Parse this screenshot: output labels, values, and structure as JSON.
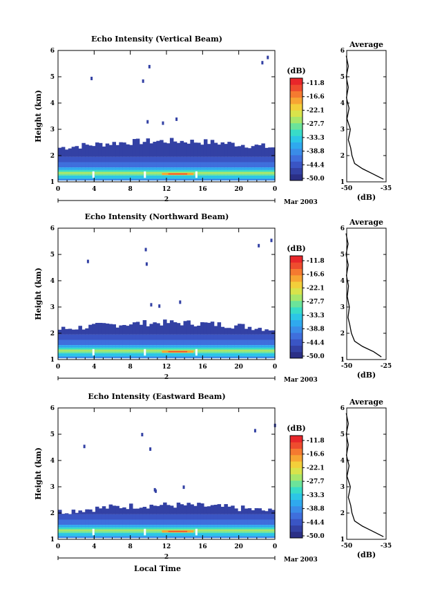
{
  "colorbar": {
    "unit": "(dB)",
    "labels": [
      "-11.8",
      "-16.6",
      "-22.1",
      "-27.7",
      "-33.3",
      "-38.8",
      "-44.4",
      "-50.0"
    ],
    "colors": [
      "#2b2f86",
      "#3341a4",
      "#3a55c4",
      "#3f6fdc",
      "#3a8ce8",
      "#2fa9ee",
      "#2cc6e6",
      "#38dcc8",
      "#6be39a",
      "#a8e66a",
      "#d9e34b",
      "#f3cf3a",
      "#f7a533",
      "#f57a30",
      "#ee4c2e",
      "#e8262a"
    ],
    "range": [
      -50.0,
      -11.8
    ]
  },
  "date_label": "Mar 2003",
  "xlabel": "Local Time",
  "chart_data": [
    {
      "type": "heatmap",
      "title": "Echo Intensity (Vertical Beam)",
      "xlabel": "",
      "ylabel": "Height (km)",
      "x_ticks": [
        "0",
        "4",
        "8",
        "12",
        "16",
        "20",
        "0"
      ],
      "xlim": [
        0,
        24
      ],
      "y_ticks": [
        "1",
        "2",
        "3",
        "4",
        "5",
        "6"
      ],
      "ylim": [
        1,
        6
      ],
      "day_label": "2",
      "echo_top_km": 2.45,
      "bright_band_km": 1.3,
      "average_profile": {
        "title": "Average",
        "xlabel": "(dB)",
        "x_ticks": [
          "-50",
          "-35"
        ],
        "xlim": [
          -50,
          -35
        ],
        "height_km": [
          1.1,
          1.3,
          1.5,
          1.7,
          2.0,
          2.3,
          2.6,
          3.0,
          3.4,
          3.8,
          4.2,
          4.6,
          5.0,
          5.4,
          5.8
        ],
        "db": [
          -36,
          -40,
          -44,
          -47,
          -48,
          -48.5,
          -49,
          -49,
          -49.5,
          -49.5,
          -49.7,
          -49.8,
          -49.8,
          -49.8,
          -49.8
        ]
      }
    },
    {
      "type": "heatmap",
      "title": "Echo Intensity (Northward Beam)",
      "xlabel": "",
      "ylabel": "Height (km)",
      "x_ticks": [
        "0",
        "4",
        "8",
        "12",
        "16",
        "20",
        "0"
      ],
      "xlim": [
        0,
        24
      ],
      "y_ticks": [
        "1",
        "2",
        "3",
        "4",
        "5",
        "6"
      ],
      "ylim": [
        1,
        6
      ],
      "day_label": "2",
      "echo_top_km": 2.3,
      "bright_band_km": 1.3,
      "average_profile": {
        "title": "Average",
        "xlabel": "(dB)",
        "x_ticks": [
          "-50",
          "-25"
        ],
        "xlim": [
          -50,
          -25
        ],
        "height_km": [
          1.1,
          1.3,
          1.5,
          1.7,
          2.0,
          2.3,
          2.6,
          3.0,
          3.4,
          3.8,
          4.2,
          4.6,
          5.0,
          5.4,
          5.8
        ],
        "db": [
          -28,
          -33,
          -40,
          -45,
          -47,
          -48,
          -48.5,
          -49,
          -49,
          -49.5,
          -49.5,
          -49.7,
          -49.8,
          -49.8,
          -49.8
        ]
      }
    },
    {
      "type": "heatmap",
      "title": "Echo Intensity (Eastward Beam)",
      "xlabel": "Local Time",
      "ylabel": "Height (km)",
      "x_ticks": [
        "0",
        "4",
        "8",
        "12",
        "16",
        "20",
        "0"
      ],
      "xlim": [
        0,
        24
      ],
      "y_ticks": [
        "1",
        "2",
        "3",
        "4",
        "5",
        "6"
      ],
      "ylim": [
        1,
        6
      ],
      "day_label": "2",
      "echo_top_km": 2.2,
      "bright_band_km": 1.3,
      "average_profile": {
        "title": "Average",
        "xlabel": "(dB)",
        "x_ticks": [
          "-50",
          "-35"
        ],
        "xlim": [
          -50,
          -35
        ],
        "height_km": [
          1.1,
          1.3,
          1.5,
          1.7,
          2.0,
          2.3,
          2.6,
          3.0,
          3.4,
          3.8,
          4.2,
          4.6,
          5.0,
          5.4,
          5.8
        ],
        "db": [
          -36,
          -40,
          -44,
          -47,
          -48,
          -48.5,
          -49,
          -49,
          -49.5,
          -49.5,
          -49.7,
          -49.8,
          -49.8,
          -49.8,
          -49.8
        ]
      }
    }
  ]
}
